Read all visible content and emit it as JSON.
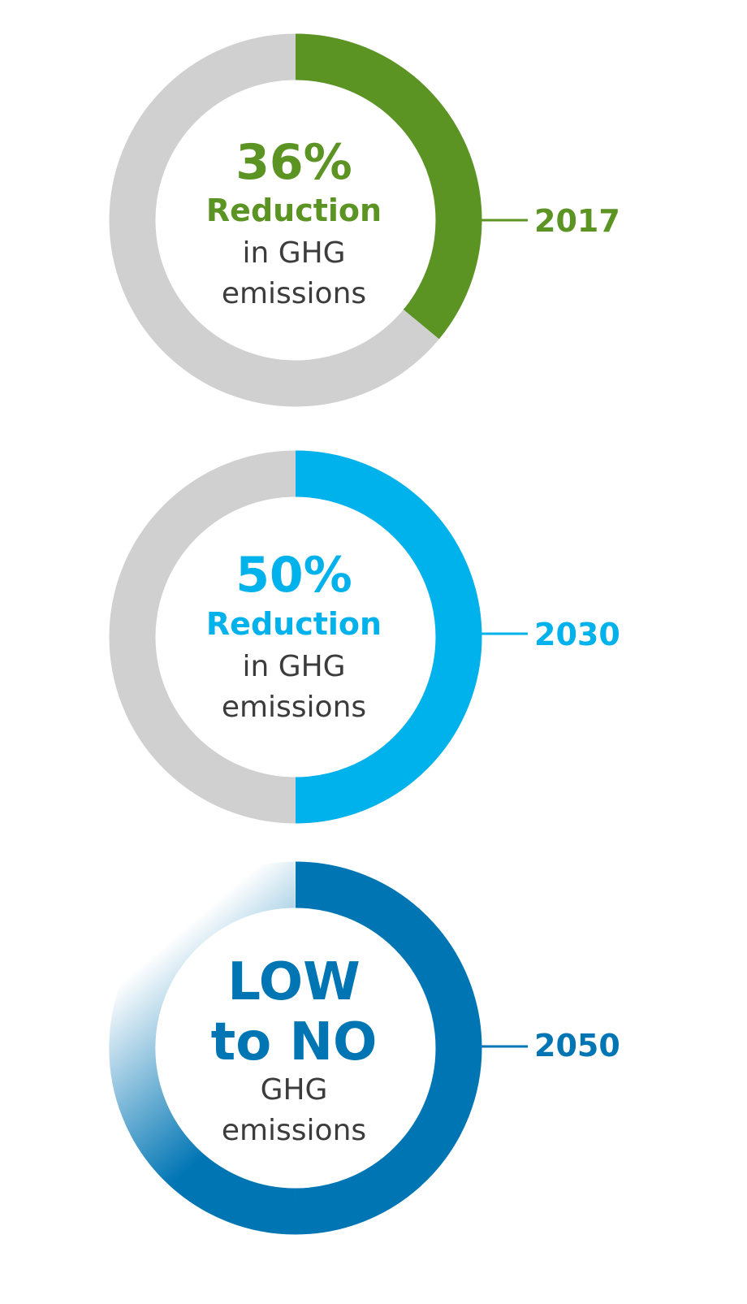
{
  "chart_data": {
    "type": "pie",
    "charts": [
      {
        "value_percent": 36,
        "headline": "36%",
        "subtitle_lines": [
          "Reduction"
        ],
        "caption_lines": [
          "in GHG",
          "emissions"
        ],
        "year": "2017",
        "color": "#5C9424",
        "remainder_color": "#D0D0D0"
      },
      {
        "value_percent": 50,
        "headline": "50%",
        "subtitle_lines": [
          "Reduction"
        ],
        "caption_lines": [
          "in GHG",
          "emissions"
        ],
        "year": "2030",
        "color": "#00B2EB",
        "remainder_color": "#D0D0D0"
      },
      {
        "value_percent": 100,
        "headline": "LOW",
        "subtitle_lines": [
          "to NO"
        ],
        "caption_lines": [
          "GHG",
          "emissions"
        ],
        "year": "2050",
        "color": "#0075B4",
        "remainder_color": "#FFFFFF",
        "fade_top_left": true
      }
    ]
  },
  "colors": {
    "text_gray": "#3C3C3C",
    "background": "#FFFFFF"
  }
}
